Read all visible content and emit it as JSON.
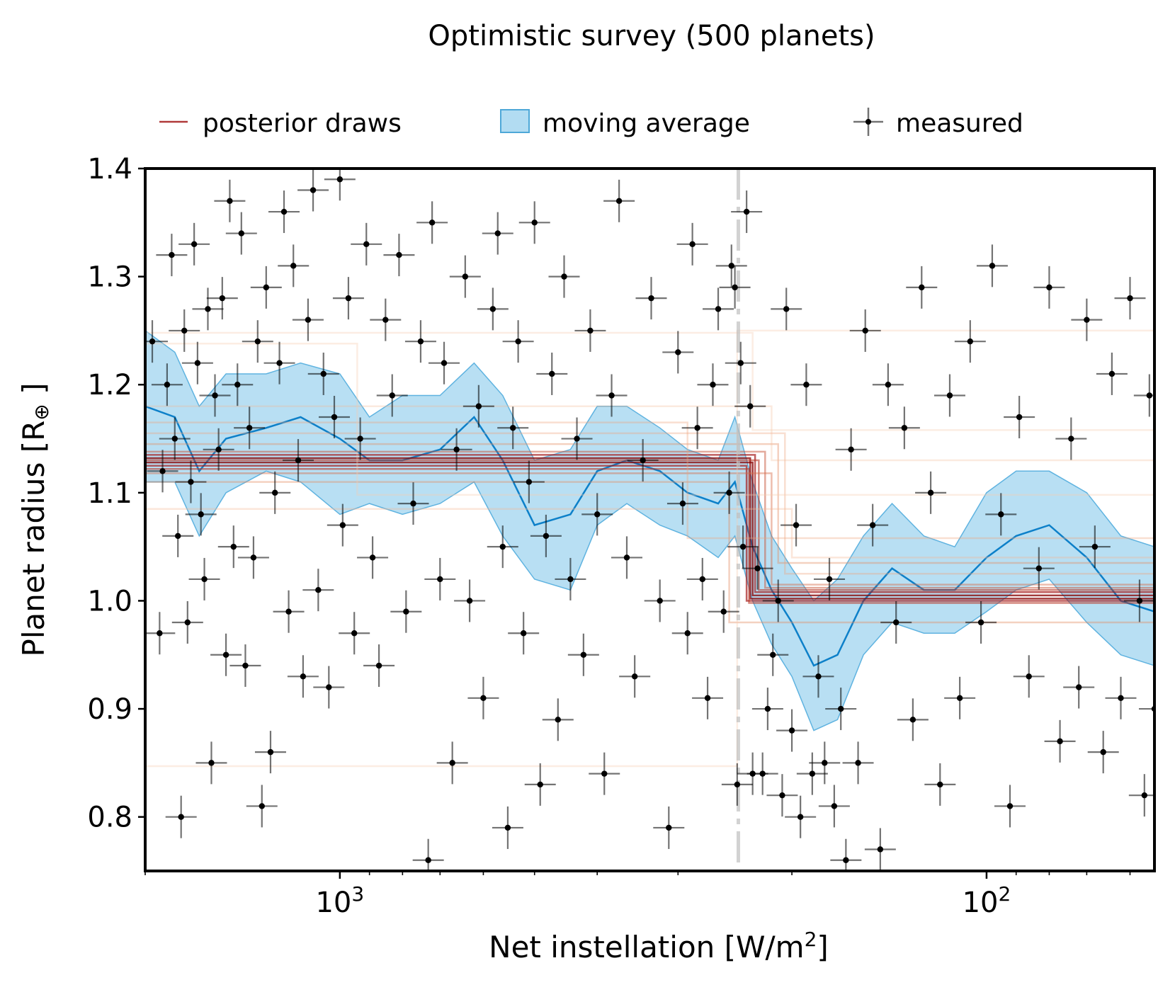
{
  "chart_data": {
    "type": "scatter",
    "title": "Optimistic survey (500 planets)",
    "xlabel_main": "Net instellation [W/m",
    "xlabel_sup": "2",
    "xlabel_close": "]",
    "ylabel_main": "Planet radius [R",
    "ylabel_sub": "⊕",
    "ylabel_close": " ]",
    "x_scale": "log",
    "x_reversed": true,
    "xlim": [
      2000,
      55
    ],
    "ylim": [
      0.75,
      1.4
    ],
    "yticks": [
      0.8,
      0.9,
      1.0,
      1.1,
      1.2,
      1.3,
      1.4
    ],
    "ytick_labels": [
      "0.8",
      "0.9",
      "1.0",
      "1.1",
      "1.2",
      "1.3",
      "1.4"
    ],
    "xticks_major": [
      1000,
      100
    ],
    "xtick_labels": [
      {
        "value": 1000,
        "base": "10",
        "exp": "3"
      },
      {
        "value": 100,
        "base": "10",
        "exp": "2"
      }
    ],
    "threshold_x": 242,
    "legend": {
      "placement": "top, above axes",
      "entries": [
        {
          "key": "posterior",
          "label": "posterior draws",
          "color": "#b03a3a"
        },
        {
          "key": "moving",
          "label": "moving average",
          "color": "#7ec4ea"
        },
        {
          "key": "measured",
          "label": "measured",
          "color": "#000000"
        }
      ]
    },
    "moving_average": {
      "color_line": "#0d80c9",
      "color_fill": "#7ec4ea",
      "points": [
        [
          2000,
          1.18,
          1.11,
          1.25
        ],
        [
          1800,
          1.17,
          1.11,
          1.23
        ],
        [
          1650,
          1.12,
          1.06,
          1.18
        ],
        [
          1500,
          1.15,
          1.1,
          1.21
        ],
        [
          1300,
          1.16,
          1.12,
          1.21
        ],
        [
          1150,
          1.17,
          1.11,
          1.22
        ],
        [
          1000,
          1.15,
          1.08,
          1.21
        ],
        [
          900,
          1.13,
          1.09,
          1.17
        ],
        [
          800,
          1.13,
          1.08,
          1.19
        ],
        [
          700,
          1.14,
          1.09,
          1.19
        ],
        [
          620,
          1.17,
          1.11,
          1.22
        ],
        [
          560,
          1.13,
          1.06,
          1.19
        ],
        [
          500,
          1.07,
          1.02,
          1.13
        ],
        [
          440,
          1.08,
          1.01,
          1.14
        ],
        [
          400,
          1.12,
          1.07,
          1.18
        ],
        [
          360,
          1.13,
          1.09,
          1.18
        ],
        [
          320,
          1.12,
          1.07,
          1.16
        ],
        [
          290,
          1.1,
          1.06,
          1.14
        ],
        [
          260,
          1.09,
          1.04,
          1.13
        ],
        [
          245,
          1.11,
          1.06,
          1.17
        ],
        [
          230,
          1.05,
          1.0,
          1.11
        ],
        [
          215,
          1.01,
          0.96,
          1.06
        ],
        [
          200,
          0.98,
          0.93,
          1.03
        ],
        [
          185,
          0.94,
          0.88,
          1.0
        ],
        [
          170,
          0.95,
          0.89,
          1.02
        ],
        [
          155,
          1.0,
          0.95,
          1.06
        ],
        [
          140,
          1.03,
          0.98,
          1.09
        ],
        [
          125,
          1.01,
          0.97,
          1.06
        ],
        [
          112,
          1.01,
          0.97,
          1.05
        ],
        [
          100,
          1.04,
          0.99,
          1.1
        ],
        [
          90,
          1.06,
          1.01,
          1.12
        ],
        [
          80,
          1.07,
          1.02,
          1.12
        ],
        [
          70,
          1.04,
          0.98,
          1.1
        ],
        [
          62,
          1.0,
          0.95,
          1.06
        ],
        [
          55,
          0.99,
          0.94,
          1.05
        ]
      ]
    },
    "posterior_draws": [
      {
        "y_high": 1.132,
        "y_low": 1.002,
        "x_step": 232,
        "color": "#8b0a0a",
        "opacity": 0.8
      },
      {
        "y_high": 1.128,
        "y_low": 1.005,
        "x_step": 230,
        "color": "#8b0a0a",
        "opacity": 0.8
      },
      {
        "y_high": 1.125,
        "y_low": 1.0,
        "x_step": 235,
        "color": "#a51c1c",
        "opacity": 0.7
      },
      {
        "y_high": 1.135,
        "y_low": 1.008,
        "x_step": 228,
        "color": "#a51c1c",
        "opacity": 0.7
      },
      {
        "y_high": 1.13,
        "y_low": 1.01,
        "x_step": 225,
        "color": "#b83a2a",
        "opacity": 0.6
      },
      {
        "y_high": 1.122,
        "y_low": 0.998,
        "x_step": 233,
        "color": "#b83a2a",
        "opacity": 0.6
      },
      {
        "y_high": 1.138,
        "y_low": 1.012,
        "x_step": 220,
        "color": "#c8553a",
        "opacity": 0.5
      },
      {
        "y_high": 1.118,
        "y_low": 1.015,
        "x_step": 215,
        "color": "#d86c4a",
        "opacity": 0.45
      },
      {
        "y_high": 1.145,
        "y_low": 1.035,
        "x_step": 210,
        "color": "#e48b62",
        "opacity": 0.4
      },
      {
        "y_high": 1.11,
        "y_low": 0.98,
        "x_step": 250,
        "color": "#e48b62",
        "opacity": 0.4
      },
      {
        "y_high": 1.165,
        "y_low": 1.058,
        "x_step": 290,
        "color": "#eea27a",
        "opacity": 0.35
      },
      {
        "y_high": 1.155,
        "y_low": 1.025,
        "x_step": 205,
        "color": "#eea27a",
        "opacity": 0.35
      },
      {
        "y_high": 1.085,
        "y_low": 1.04,
        "x_step": 200,
        "color": "#f3b894",
        "opacity": 0.35
      },
      {
        "y_high": 1.18,
        "y_low": 1.13,
        "x_step": 215,
        "color": "#f3b894",
        "opacity": 0.3
      },
      {
        "y_high": 1.238,
        "y_low": 1.098,
        "x_step": 940,
        "color": "#f7ccae",
        "opacity": 0.35
      },
      {
        "y_high": 1.248,
        "y_low": 1.158,
        "x_step": 230,
        "color": "#f7ccae",
        "opacity": 0.35
      },
      {
        "y_high": 0.847,
        "y_low": 1.25,
        "x_step": 243,
        "color": "#f7ccae",
        "opacity": 0.35
      }
    ],
    "measured": {
      "color": "#000000",
      "points": [
        [
          1950,
          1.24
        ],
        [
          1900,
          0.97
        ],
        [
          1880,
          1.12
        ],
        [
          1850,
          1.2
        ],
        [
          1820,
          1.32
        ],
        [
          1800,
          1.15
        ],
        [
          1780,
          1.06
        ],
        [
          1760,
          0.8
        ],
        [
          1740,
          1.25
        ],
        [
          1720,
          0.98
        ],
        [
          1700,
          1.11
        ],
        [
          1680,
          1.33
        ],
        [
          1660,
          1.22
        ],
        [
          1640,
          1.08
        ],
        [
          1620,
          1.02
        ],
        [
          1600,
          1.27
        ],
        [
          1580,
          0.85
        ],
        [
          1560,
          1.19
        ],
        [
          1540,
          1.14
        ],
        [
          1520,
          1.28
        ],
        [
          1500,
          0.95
        ],
        [
          1480,
          1.37
        ],
        [
          1460,
          1.05
        ],
        [
          1440,
          1.2
        ],
        [
          1420,
          1.34
        ],
        [
          1400,
          0.94
        ],
        [
          1380,
          1.16
        ],
        [
          1360,
          1.04
        ],
        [
          1340,
          1.24
        ],
        [
          1320,
          0.81
        ],
        [
          1300,
          1.29
        ],
        [
          1280,
          0.86
        ],
        [
          1260,
          1.1
        ],
        [
          1240,
          1.22
        ],
        [
          1220,
          1.36
        ],
        [
          1200,
          0.99
        ],
        [
          1180,
          1.31
        ],
        [
          1160,
          1.13
        ],
        [
          1140,
          0.93
        ],
        [
          1120,
          1.26
        ],
        [
          1100,
          1.38
        ],
        [
          1080,
          1.01
        ],
        [
          1060,
          1.21
        ],
        [
          1040,
          0.92
        ],
        [
          1020,
          1.17
        ],
        [
          1000,
          1.39
        ],
        [
          990,
          1.07
        ],
        [
          970,
          1.28
        ],
        [
          950,
          0.97
        ],
        [
          930,
          1.15
        ],
        [
          910,
          1.33
        ],
        [
          890,
          1.04
        ],
        [
          870,
          0.94
        ],
        [
          850,
          1.26
        ],
        [
          830,
          1.19
        ],
        [
          810,
          1.32
        ],
        [
          790,
          0.99
        ],
        [
          770,
          1.09
        ],
        [
          750,
          1.24
        ],
        [
          730,
          0.76
        ],
        [
          720,
          1.35
        ],
        [
          700,
          1.02
        ],
        [
          690,
          1.22
        ],
        [
          670,
          0.85
        ],
        [
          660,
          1.14
        ],
        [
          640,
          1.3
        ],
        [
          630,
          1.0
        ],
        [
          610,
          1.18
        ],
        [
          600,
          0.91
        ],
        [
          580,
          1.27
        ],
        [
          570,
          1.34
        ],
        [
          560,
          1.05
        ],
        [
          550,
          0.79
        ],
        [
          540,
          1.16
        ],
        [
          530,
          1.24
        ],
        [
          520,
          0.97
        ],
        [
          510,
          1.11
        ],
        [
          500,
          1.35
        ],
        [
          490,
          0.83
        ],
        [
          480,
          1.06
        ],
        [
          470,
          1.21
        ],
        [
          460,
          0.89
        ],
        [
          450,
          1.3
        ],
        [
          440,
          1.02
        ],
        [
          430,
          1.15
        ],
        [
          420,
          0.95
        ],
        [
          410,
          1.25
        ],
        [
          400,
          1.08
        ],
        [
          390,
          0.84
        ],
        [
          380,
          1.19
        ],
        [
          370,
          1.37
        ],
        [
          360,
          1.04
        ],
        [
          350,
          0.93
        ],
        [
          340,
          1.13
        ],
        [
          330,
          1.28
        ],
        [
          320,
          1.0
        ],
        [
          310,
          0.79
        ],
        [
          300,
          1.23
        ],
        [
          295,
          1.09
        ],
        [
          290,
          0.97
        ],
        [
          285,
          1.33
        ],
        [
          280,
          1.16
        ],
        [
          275,
          1.02
        ],
        [
          270,
          0.91
        ],
        [
          265,
          1.2
        ],
        [
          260,
          1.27
        ],
        [
          255,
          0.99
        ],
        [
          250,
          1.1
        ],
        [
          248,
          1.31
        ],
        [
          245,
          1.29
        ],
        [
          243,
          0.83
        ],
        [
          240,
          1.22
        ],
        [
          238,
          1.05
        ],
        [
          235,
          1.36
        ],
        [
          232,
          1.18
        ],
        [
          230,
          0.84
        ],
        [
          226,
          1.03
        ],
        [
          222,
          0.84
        ],
        [
          218,
          0.9
        ],
        [
          214,
          0.95
        ],
        [
          210,
          1.0
        ],
        [
          207,
          0.82
        ],
        [
          204,
          1.27
        ],
        [
          200,
          0.88
        ],
        [
          197,
          1.07
        ],
        [
          194,
          0.8
        ],
        [
          190,
          1.2
        ],
        [
          186,
          0.84
        ],
        [
          182,
          0.93
        ],
        [
          178,
          0.85
        ],
        [
          175,
          1.02
        ],
        [
          172,
          0.81
        ],
        [
          168,
          0.9
        ],
        [
          165,
          0.76
        ],
        [
          162,
          1.14
        ],
        [
          158,
          0.85
        ],
        [
          154,
          1.25
        ],
        [
          150,
          1.07
        ],
        [
          146,
          0.77
        ],
        [
          142,
          1.2
        ],
        [
          138,
          0.98
        ],
        [
          134,
          1.16
        ],
        [
          130,
          0.89
        ],
        [
          126,
          1.29
        ],
        [
          122,
          1.1
        ],
        [
          118,
          0.83
        ],
        [
          114,
          1.19
        ],
        [
          110,
          0.91
        ],
        [
          106,
          1.24
        ],
        [
          102,
          0.98
        ],
        [
          98,
          1.31
        ],
        [
          95,
          1.08
        ],
        [
          92,
          0.81
        ],
        [
          89,
          1.17
        ],
        [
          86,
          0.93
        ],
        [
          83,
          1.03
        ],
        [
          80,
          1.29
        ],
        [
          77,
          0.87
        ],
        [
          74,
          1.15
        ],
        [
          72,
          0.92
        ],
        [
          70,
          1.26
        ],
        [
          68,
          1.05
        ],
        [
          66,
          0.86
        ],
        [
          64,
          1.21
        ],
        [
          62,
          0.91
        ],
        [
          60,
          1.28
        ],
        [
          58,
          1.0
        ],
        [
          57,
          0.82
        ],
        [
          56,
          1.19
        ],
        [
          55,
          0.9
        ]
      ]
    }
  }
}
